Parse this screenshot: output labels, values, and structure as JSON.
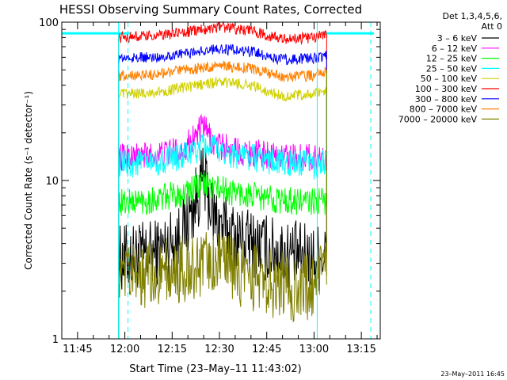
{
  "chart_data": {
    "type": "line",
    "title": "HESSI Observing Summary Count Rates, Corrected",
    "xlabel": "Start Time (23–May–11 11:43:02)",
    "ylabel": "Corrected Count Rate (s⁻¹ detector⁻¹)",
    "y_scale": "log",
    "ylim": [
      1,
      100
    ],
    "xlim": [
      "11:40",
      "13:21"
    ],
    "x_ticks": [
      "11:45",
      "12:00",
      "12:15",
      "12:30",
      "12:45",
      "13:00",
      "13:15"
    ],
    "y_ticks": [
      "1",
      "10",
      "100"
    ],
    "legend": {
      "header": [
        "Det 1,3,4,5,6,",
        "Att 0"
      ],
      "placement": "right"
    },
    "annotations": {
      "date_stamp": "23–May–2011 16:45"
    },
    "attenuator_state": {
      "level": 85,
      "segments": [
        [
          "11:40",
          "12:02"
        ],
        [
          "13:03",
          "13:19"
        ]
      ],
      "color": "#00ffff"
    },
    "time_markers": {
      "solid": [
        "11:58",
        "13:01"
      ],
      "dashed": [
        "12:01",
        "13:18"
      ],
      "color": "#00ffff"
    },
    "series": [
      {
        "name": "3 – 6 keV",
        "color": "#000000",
        "x": [
          "11:58",
          "12:10",
          "12:18",
          "12:22",
          "12:25",
          "12:28",
          "12:33",
          "12:40",
          "12:50",
          "13:00",
          "13:04"
        ],
        "y": [
          3.2,
          3.5,
          4.5,
          7.0,
          10.5,
          6.0,
          4.6,
          4.0,
          3.5,
          3.2,
          3.5
        ]
      },
      {
        "name": "6 – 12 keV",
        "color": "#ff00ff",
        "x": [
          "11:58",
          "12:10",
          "12:18",
          "12:22",
          "12:25",
          "12:28",
          "12:35",
          "12:45",
          "12:55",
          "13:04"
        ],
        "y": [
          14,
          14.5,
          15.5,
          19,
          22,
          17,
          15.5,
          14.5,
          14,
          14
        ]
      },
      {
        "name": "12 – 25 keV",
        "color": "#00ff00",
        "x": [
          "11:58",
          "12:10",
          "12:20",
          "12:25",
          "12:30",
          "12:40",
          "12:50",
          "13:00",
          "13:04"
        ],
        "y": [
          7.2,
          7.6,
          8.5,
          9.5,
          8.8,
          8.0,
          7.5,
          7.3,
          7.5
        ]
      },
      {
        "name": "25 – 50 keV",
        "color": "#00ffff",
        "x": [
          "11:58",
          "12:10",
          "12:20",
          "12:26",
          "12:32",
          "12:40",
          "12:50",
          "13:00",
          "13:04"
        ],
        "y": [
          12.5,
          13,
          14.5,
          16.5,
          15,
          14,
          13,
          12.5,
          13
        ]
      },
      {
        "name": "50 – 100 keV",
        "color": "#d0d000",
        "x": [
          "11:58",
          "12:10",
          "12:20",
          "12:30",
          "12:40",
          "12:50",
          "13:00",
          "13:04"
        ],
        "y": [
          35,
          36,
          39,
          42,
          40,
          34,
          35,
          37
        ]
      },
      {
        "name": "100 – 300 keV",
        "color": "#ff0000",
        "x": [
          "11:58",
          "12:10",
          "12:20",
          "12:30",
          "12:40",
          "12:50",
          "13:00",
          "13:04"
        ],
        "y": [
          80,
          82,
          87,
          94,
          88,
          78,
          80,
          84
        ]
      },
      {
        "name": "300 – 800 keV",
        "color": "#0000ff",
        "x": [
          "11:58",
          "12:10",
          "12:20",
          "12:30",
          "12:40",
          "12:50",
          "13:00",
          "13:04"
        ],
        "y": [
          59,
          60,
          64,
          68,
          65,
          58,
          59,
          62
        ]
      },
      {
        "name": "800 – 7000 keV",
        "color": "#ff8000",
        "x": [
          "11:58",
          "12:10",
          "12:20",
          "12:30",
          "12:40",
          "12:50",
          "13:00",
          "13:04"
        ],
        "y": [
          46,
          47,
          50,
          53,
          51,
          45,
          46,
          48
        ]
      },
      {
        "name": "7000 – 20000 keV",
        "color": "#808000",
        "x": [
          "11:58",
          "12:10",
          "12:20",
          "12:28",
          "12:35",
          "12:45",
          "12:55",
          "13:04"
        ],
        "y": [
          2.4,
          2.6,
          2.8,
          3.0,
          2.7,
          2.3,
          2.0,
          2.5
        ]
      }
    ]
  }
}
